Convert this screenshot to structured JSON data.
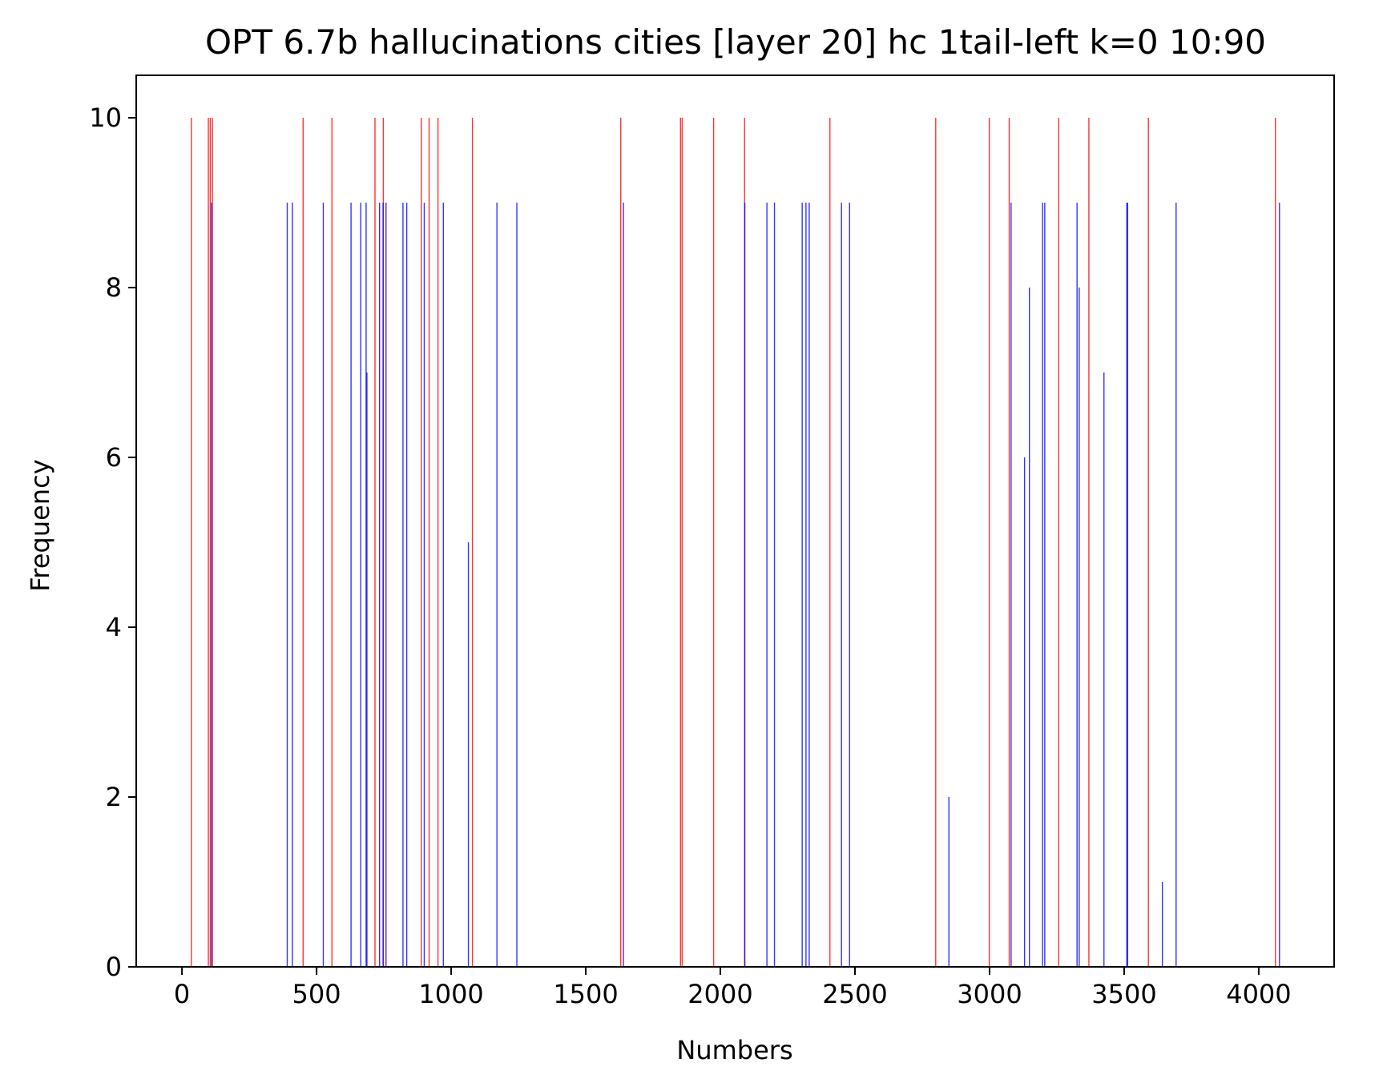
{
  "chart_data": {
    "type": "bar",
    "title": "OPT 6.7b hallucinations cities [layer 20] hc 1tail-left k=0 10:90",
    "xlabel": "Numbers",
    "ylabel": "Frequency",
    "xlim": [
      -170,
      4280
    ],
    "ylim": [
      0,
      10.5
    ],
    "xticks": [
      0,
      500,
      1000,
      1500,
      2000,
      2500,
      3000,
      3500,
      4000
    ],
    "xtick_labels": [
      "0",
      "500",
      "1000",
      "1500",
      "2000",
      "2500",
      "3000",
      "3500",
      "4000"
    ],
    "yticks": [
      0,
      2,
      4,
      6,
      8,
      10
    ],
    "ytick_labels": [
      "0",
      "2",
      "4",
      "6",
      "8",
      "10"
    ],
    "grid": false,
    "series": [
      {
        "color": "#ff0000",
        "x": [
          35,
          98,
          105,
          113,
          450,
          557,
          717,
          748,
          889,
          918,
          951,
          1079,
          1630,
          1852,
          1858,
          1975,
          2090,
          2407,
          2800,
          2999,
          3073,
          3257,
          3369,
          3590,
          4062
        ],
        "values": [
          10,
          10,
          10,
          10,
          10,
          10,
          10,
          10,
          10,
          10,
          10,
          10,
          10,
          10,
          10,
          10,
          10,
          10,
          10,
          10,
          10,
          10,
          10,
          10,
          10
        ]
      },
      {
        "color": "#0000ff",
        "x": [
          110,
          391,
          410,
          525,
          628,
          664,
          684,
          687,
          734,
          747,
          758,
          821,
          835,
          900,
          971,
          1064,
          1170,
          1244,
          1640,
          2091,
          2173,
          2201,
          2304,
          2318,
          2330,
          2450,
          2480,
          3080,
          3130,
          3148,
          3197,
          3205,
          3325,
          3333,
          3425,
          3510,
          3513,
          3642,
          3693,
          4077
        ],
        "values": [
          9,
          9,
          9,
          9,
          9,
          9,
          9,
          7,
          9,
          9,
          9,
          9,
          9,
          9,
          9,
          5,
          9,
          9,
          9,
          9,
          9,
          9,
          9,
          9,
          9,
          9,
          9,
          9,
          6,
          8,
          9,
          9,
          9,
          8,
          7,
          9,
          9,
          1,
          9,
          9
        ]
      },
      {
        "color": "#0000ff",
        "x": [
          2849
        ],
        "values": [
          2
        ]
      }
    ]
  }
}
